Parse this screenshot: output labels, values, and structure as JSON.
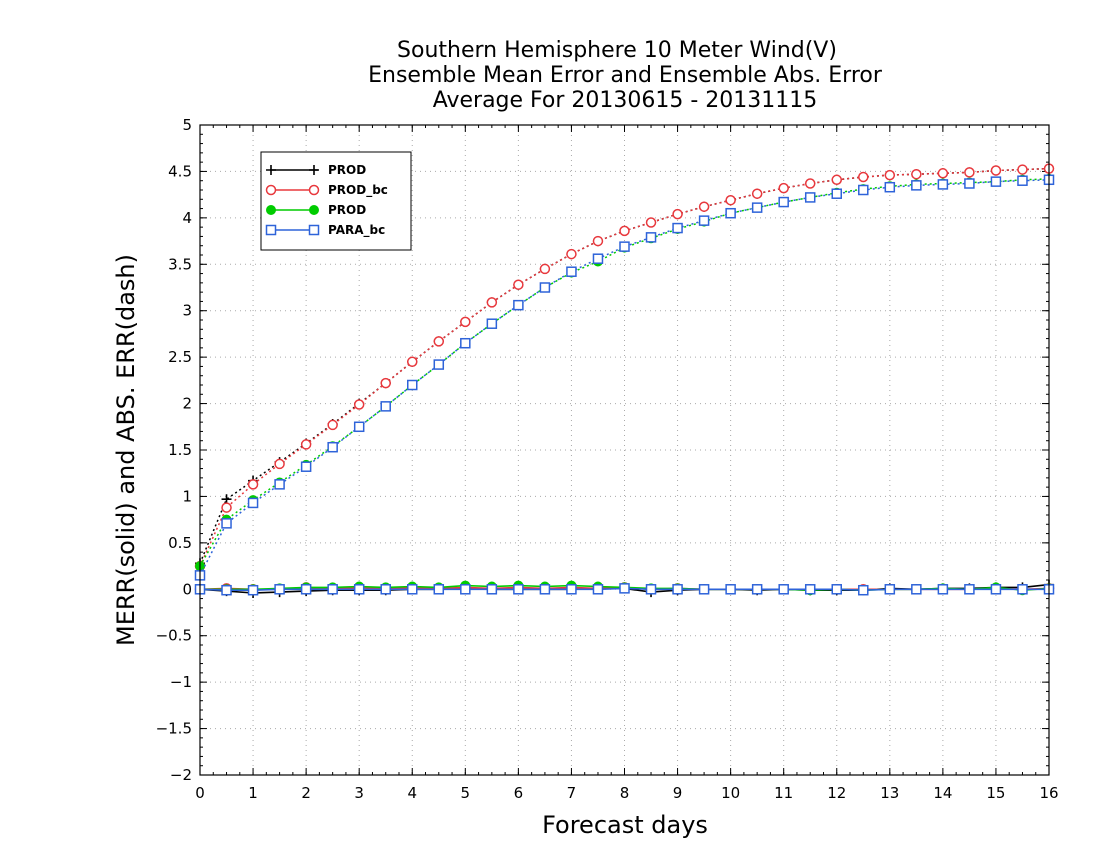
{
  "chart_data": {
    "type": "line",
    "title_lines": [
      "Southern Hemisphere 10 Meter Wind(V)",
      "Ensemble Mean Error and Ensemble Abs. Error",
      "Average For 20130615 - 20131115"
    ],
    "xlabel": "Forecast days",
    "ylabel": "MERR(solid) and ABS. ERR(dash)",
    "xlim": [
      0,
      16
    ],
    "ylim": [
      -2,
      5
    ],
    "xticks": [
      "0",
      "1",
      "2",
      "3",
      "4",
      "5",
      "6",
      "7",
      "8",
      "9",
      "10",
      "11",
      "12",
      "13",
      "14",
      "15",
      "16"
    ],
    "yticks": [
      "-2",
      "-1.5",
      "-1",
      "-0.5",
      "0",
      "0.5",
      "1",
      "1.5",
      "2",
      "2.5",
      "3",
      "3.5",
      "4",
      "4.5",
      "5"
    ],
    "grid": true,
    "legend_position": "top-left",
    "x": [
      0,
      0.5,
      1,
      1.5,
      2,
      2.5,
      3,
      3.5,
      4,
      4.5,
      5,
      5.5,
      6,
      6.5,
      7,
      7.5,
      8,
      8.5,
      9,
      9.5,
      10,
      10.5,
      11,
      11.5,
      12,
      12.5,
      13,
      13.5,
      14,
      14.5,
      15,
      15.5,
      16
    ],
    "series": [
      {
        "name": "PROD",
        "color": "#000000",
        "marker": "plus",
        "abs_err": [
          0.28,
          0.97,
          1.17,
          1.37,
          1.57,
          1.78,
          2.0,
          2.22,
          2.45,
          2.67,
          2.88,
          3.09,
          3.28,
          3.45,
          3.61,
          3.75,
          3.86,
          3.95,
          4.04,
          4.12,
          4.19,
          4.26,
          4.32,
          4.37,
          4.41,
          4.44,
          4.46,
          4.47,
          4.48,
          4.49,
          4.51,
          4.52,
          4.53
        ],
        "mean_err": [
          0.0,
          -0.02,
          -0.04,
          -0.03,
          -0.02,
          -0.01,
          -0.01,
          -0.01,
          0.0,
          0.0,
          0.01,
          0.0,
          0.0,
          0.0,
          0.0,
          0.01,
          0.01,
          -0.03,
          -0.01,
          0.0,
          0.0,
          -0.01,
          0.0,
          -0.01,
          -0.01,
          -0.01,
          0.01,
          0.0,
          0.01,
          0.01,
          0.02,
          0.02,
          0.05
        ]
      },
      {
        "name": "PROD_bc",
        "color": "#e8383d",
        "marker": "circle-open",
        "abs_err": [
          0.25,
          0.88,
          1.13,
          1.35,
          1.56,
          1.77,
          1.99,
          2.22,
          2.45,
          2.67,
          2.88,
          3.09,
          3.28,
          3.45,
          3.61,
          3.75,
          3.86,
          3.95,
          4.04,
          4.12,
          4.19,
          4.26,
          4.32,
          4.37,
          4.41,
          4.44,
          4.46,
          4.47,
          4.48,
          4.49,
          4.51,
          4.52,
          4.53
        ],
        "mean_err": [
          0.0,
          0.01,
          0.0,
          0.0,
          0.02,
          0.01,
          0.02,
          0.01,
          0.02,
          0.01,
          0.02,
          0.01,
          0.02,
          0.01,
          0.02,
          0.01,
          0.02,
          0.0,
          0.01,
          0.0,
          0.0,
          0.0,
          0.0,
          0.0,
          0.0,
          0.0,
          0.0,
          0.0,
          0.0,
          0.0,
          0.01,
          0.0,
          0.01
        ]
      },
      {
        "name": "PROD",
        "color": "#00cc00",
        "marker": "circle-filled",
        "abs_err": [
          0.25,
          0.75,
          0.96,
          1.15,
          1.34,
          1.54,
          1.75,
          1.97,
          2.2,
          2.42,
          2.65,
          2.86,
          3.06,
          3.25,
          3.41,
          3.53,
          3.68,
          3.78,
          3.88,
          3.96,
          4.05,
          4.11,
          4.17,
          4.22,
          4.27,
          4.31,
          4.34,
          4.36,
          4.37,
          4.38,
          4.39,
          4.41,
          4.42
        ],
        "mean_err": [
          0.0,
          0.0,
          0.0,
          0.01,
          0.02,
          0.02,
          0.03,
          0.02,
          0.03,
          0.02,
          0.04,
          0.03,
          0.04,
          0.03,
          0.04,
          0.03,
          0.02,
          0.01,
          0.01,
          0.0,
          0.0,
          0.0,
          0.0,
          -0.01,
          0.0,
          -0.01,
          0.0,
          0.0,
          0.01,
          0.0,
          0.02,
          -0.01,
          0.01
        ]
      },
      {
        "name": "PARA_bc",
        "color": "#2e63d9",
        "marker": "square-open",
        "abs_err": [
          0.15,
          0.71,
          0.93,
          1.13,
          1.32,
          1.53,
          1.75,
          1.97,
          2.2,
          2.42,
          2.65,
          2.86,
          3.06,
          3.25,
          3.42,
          3.56,
          3.69,
          3.79,
          3.89,
          3.97,
          4.05,
          4.11,
          4.17,
          4.22,
          4.26,
          4.3,
          4.33,
          4.35,
          4.36,
          4.37,
          4.39,
          4.4,
          4.41
        ],
        "mean_err": [
          0.0,
          -0.01,
          -0.01,
          0.0,
          0.0,
          0.0,
          0.0,
          0.0,
          0.0,
          0.0,
          0.0,
          0.0,
          0.0,
          0.0,
          0.0,
          0.0,
          0.01,
          0.0,
          0.0,
          0.0,
          0.0,
          0.0,
          0.0,
          0.0,
          0.0,
          -0.01,
          0.0,
          0.0,
          0.0,
          0.0,
          0.0,
          0.0,
          0.0
        ]
      }
    ]
  }
}
